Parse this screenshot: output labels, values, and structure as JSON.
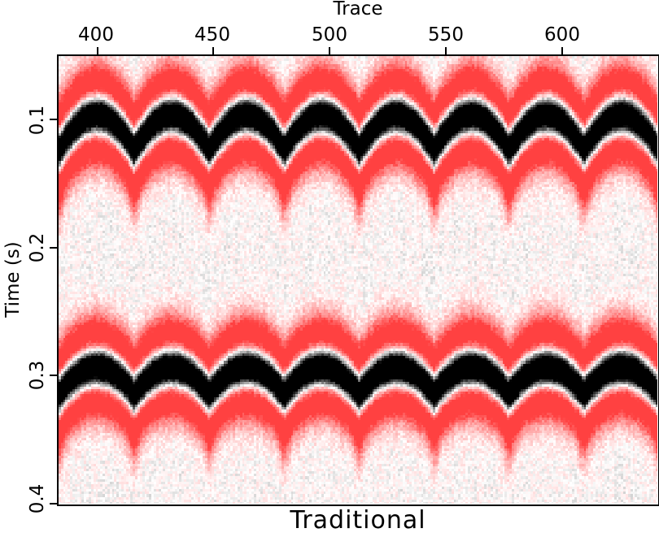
{
  "chart_data": {
    "type": "heatmap",
    "title": "Traditional",
    "xlabel": "Trace",
    "ylabel": "Time (s)",
    "x_axis_position": "top",
    "xlim": [
      383,
      641
    ],
    "ylim": [
      0.05,
      0.4
    ],
    "y_inverted": true,
    "xticks": [
      400,
      450,
      500,
      550,
      600
    ],
    "xtick_labels": [
      "400",
      "450",
      "500",
      "550",
      "600"
    ],
    "yticks": [
      0.1,
      0.2,
      0.3,
      0.4
    ],
    "ytick_labels": [
      "0.1",
      "0.2",
      "0.3",
      "0.4"
    ],
    "colormap": {
      "positive": "#000000",
      "zero": "#ffffff",
      "negative": "#ff4040"
    },
    "sample_interval_s": 0.002,
    "events": [
      {
        "apex_time_s": 0.097,
        "cusp_time_s": 0.124,
        "first_apex_trace": 400,
        "apex_spacing_traces": 32.25
      },
      {
        "apex_time_s": 0.294,
        "cusp_time_s": 0.315,
        "first_apex_trace": 400,
        "apex_spacing_traces": 32.25
      }
    ],
    "wavelet_peak_hz": 14,
    "noise_level": 0.06
  }
}
